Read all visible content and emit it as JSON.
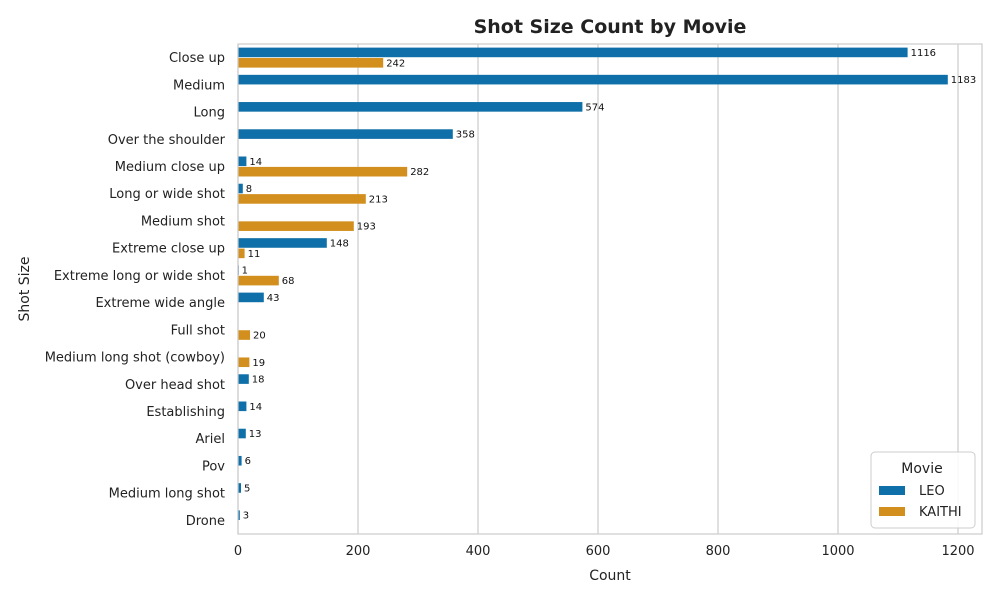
{
  "chart_data": {
    "type": "bar",
    "orientation": "horizontal",
    "title": "Shot Size Count by Movie",
    "xlabel": "Count",
    "ylabel": "Shot Size",
    "xlim": [
      0,
      1240
    ],
    "xticks": [
      0,
      200,
      400,
      600,
      800,
      1000,
      1200
    ],
    "grid": "vertical",
    "legend": {
      "title": "Movie",
      "placement": "bottom-right"
    },
    "categories": [
      "Close up",
      "Medium",
      "Long",
      "Over the shoulder",
      "Medium close up",
      "Long or wide shot",
      "Medium shot",
      "Extreme close up",
      "Extreme long or wide shot",
      "Extreme wide angle",
      "Full shot",
      "Medium long shot (cowboy)",
      "Over head shot",
      "Establishing",
      "Ariel",
      "Pov",
      "Medium long shot",
      "Drone"
    ],
    "series": [
      {
        "name": "LEO",
        "color": "#0f6fa8",
        "values": [
          1116,
          1183,
          574,
          358,
          14,
          8,
          null,
          148,
          1,
          43,
          null,
          null,
          18,
          14,
          13,
          6,
          5,
          3
        ]
      },
      {
        "name": "KAITHI",
        "color": "#d38f1d",
        "values": [
          242,
          null,
          null,
          null,
          282,
          213,
          193,
          11,
          68,
          null,
          20,
          19,
          null,
          null,
          null,
          null,
          null,
          null
        ]
      }
    ]
  }
}
